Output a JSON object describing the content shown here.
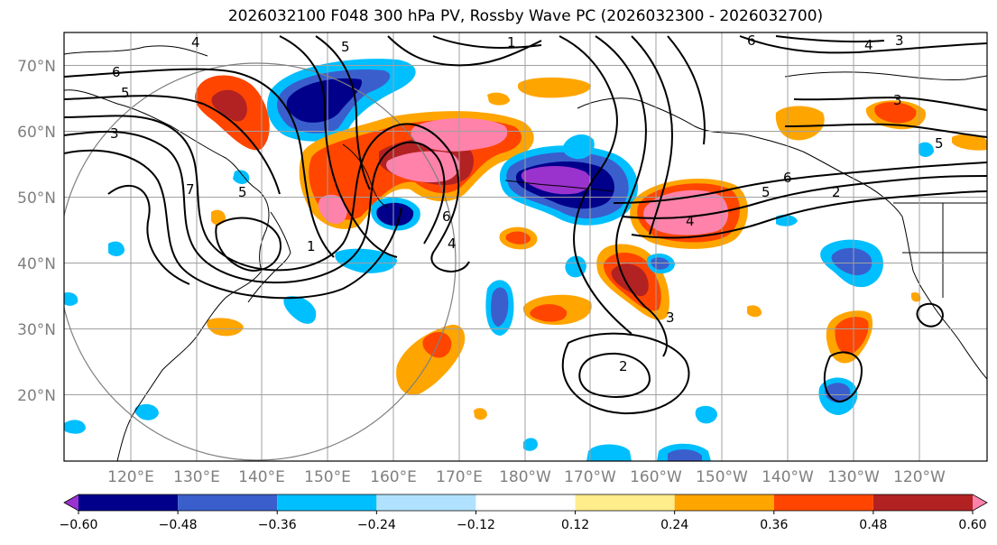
{
  "title": "2026032100 F048 300 hPa PV, Rossby Wave PC (2026032300 - 2026032700)",
  "map": {
    "lat_labels": [
      "70°N",
      "60°N",
      "50°N",
      "40°N",
      "30°N",
      "20°N"
    ],
    "lon_labels": [
      "120°E",
      "130°E",
      "140°E",
      "150°E",
      "160°E",
      "170°E",
      "180°W",
      "170°W",
      "160°W",
      "150°W",
      "140°W",
      "130°W",
      "120°W"
    ],
    "contour_labels": [
      "4",
      "5",
      "1",
      "6",
      "4",
      "3",
      "6",
      "5",
      "3",
      "7",
      "5",
      "6",
      "1",
      "6",
      "5",
      "2",
      "4",
      "4",
      "3",
      "5",
      "2",
      "3"
    ]
  },
  "colorbar": {
    "ticks": [
      "−0.60",
      "−0.48",
      "−0.36",
      "−0.24",
      "−0.12",
      "0.12",
      "0.24",
      "0.36",
      "0.48",
      "0.60"
    ],
    "colors": [
      "#9a32cd",
      "#00008b",
      "#3a5fcd",
      "#00bfff",
      "#b0e2ff",
      "#ffffff",
      "#ffec8b",
      "#ffa500",
      "#ff4500",
      "#b22222",
      "#ff82ab"
    ]
  }
}
